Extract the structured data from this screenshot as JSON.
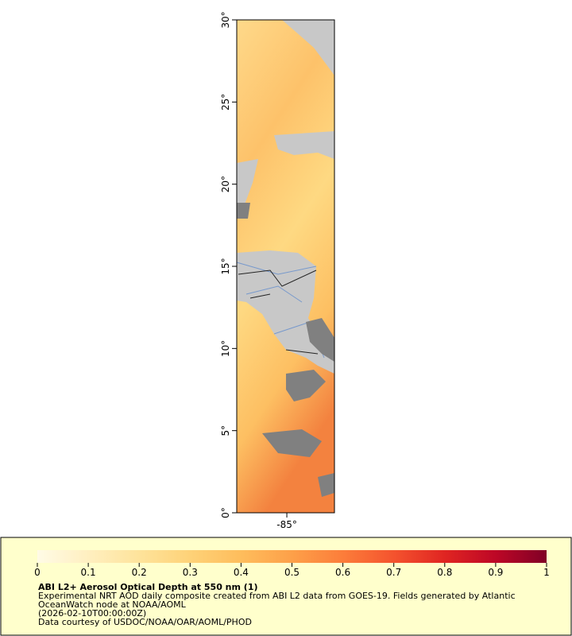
{
  "map": {
    "lat_ticks": [
      {
        "value": 0,
        "label": "0°"
      },
      {
        "value": 5,
        "label": "5°"
      },
      {
        "value": 10,
        "label": "10°"
      },
      {
        "value": 15,
        "label": "15°"
      },
      {
        "value": 20,
        "label": "20°"
      },
      {
        "value": 25,
        "label": "25°"
      },
      {
        "value": 30,
        "label": "30°"
      }
    ],
    "ylim": [
      0,
      30
    ],
    "lon_ticks": [
      {
        "value": -85,
        "label": "-85°"
      }
    ],
    "xlim": [
      -88.05,
      -82.1
    ]
  },
  "legend": {
    "title": "ABI L2+ Aerosol Optical Depth at 550 nm (1)",
    "lines": [
      "Experimental NRT AOD daily composite created from ABI L2 data from GOES-19. Fields generated by Atlantic",
      "OceanWatch node at NOAA/AOML",
      "(2026-02-10T00:00:00Z)",
      "Data courtesy of USDOC/NOAA/OAR/AOML/PHOD"
    ],
    "colorbar": {
      "lim": [
        0,
        1
      ],
      "ticks": [
        0,
        0.1,
        0.2,
        0.3,
        0.4,
        0.5,
        0.6,
        0.7,
        0.8,
        0.9,
        1
      ],
      "colors": [
        "#fffbe6",
        "#ffefc0",
        "#fee39b",
        "#fed278",
        "#febd5c",
        "#fda049",
        "#fc7d3a",
        "#f4532e",
        "#e02522",
        "#bd0726",
        "#800026"
      ]
    }
  }
}
